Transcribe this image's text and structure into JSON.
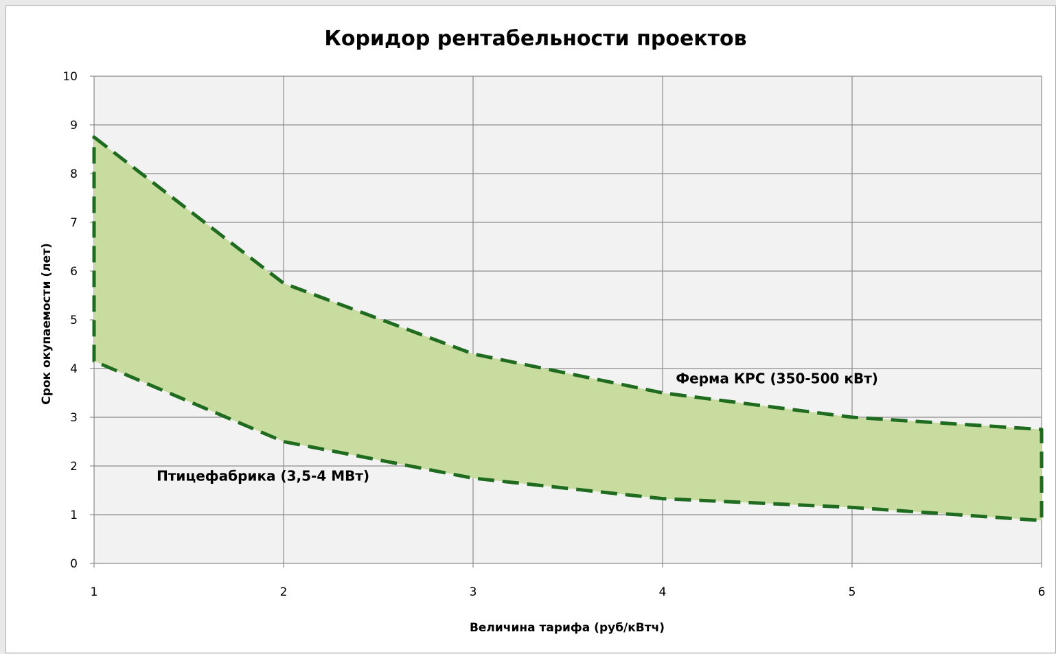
{
  "chart_data": {
    "type": "area",
    "title": "Коридор рентабельности  проектов",
    "xlabel": "Величина тарифа  (руб/кВтч)",
    "ylabel": "Срок окупаемости  (лет)",
    "xlim": [
      1,
      6
    ],
    "ylim": [
      0,
      10
    ],
    "x_ticks": [
      1,
      2,
      3,
      4,
      5,
      6
    ],
    "y_ticks": [
      0,
      1,
      2,
      3,
      4,
      5,
      6,
      7,
      8,
      9,
      10
    ],
    "grid": true,
    "legend": "none",
    "colors": {
      "plot_background": "#f2f2f2",
      "band_fill": "#c8dca0",
      "line": "#1f6b1f",
      "grid": "#8c8c8c"
    },
    "series": [
      {
        "x": [
          1,
          2,
          3,
          4,
          5,
          6
        ],
        "values": [
          8.75,
          5.75,
          4.3,
          3.5,
          3.0,
          2.75
        ]
      },
      {
        "x": [
          1,
          2,
          3,
          4,
          5,
          6
        ],
        "values": [
          4.15,
          2.5,
          1.75,
          1.33,
          1.15,
          0.88
        ]
      }
    ],
    "annotations": [
      {
        "text": "Ферма КРС (350-500  кВт)",
        "x": 4.07,
        "y": 3.7
      },
      {
        "text": "Птицефабрика (3,5-4 МВт)",
        "x": 1.33,
        "y": 1.7
      }
    ]
  }
}
